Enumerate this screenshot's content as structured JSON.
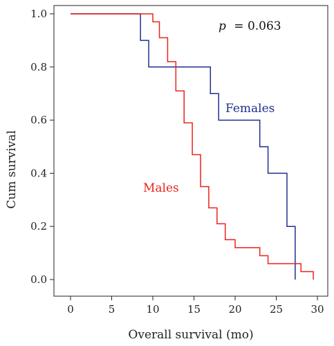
{
  "chart_data": {
    "type": "line",
    "step": true,
    "annotation": {
      "p_label": "p",
      "p_value": "= 0.063"
    },
    "xlabel": "Overall survival (mo)",
    "ylabel": "Cum survival",
    "xlim": [
      0,
      30
    ],
    "ylim": [
      0,
      1
    ],
    "xticks": [
      "0",
      "5",
      "10",
      "15",
      "20",
      "25",
      "30"
    ],
    "yticks": [
      "0.0",
      "0.2",
      "0.4",
      "0.6",
      "0.8",
      "1.0"
    ],
    "grid": false,
    "series": [
      {
        "name": "Females",
        "color": "#1f2f8f",
        "x": [
          0,
          8.5,
          9.5,
          17,
          18,
          23,
          24,
          26.3,
          27.3
        ],
        "y": [
          1.0,
          0.9,
          0.8,
          0.7,
          0.6,
          0.5,
          0.4,
          0.2,
          0.0
        ]
      },
      {
        "name": "Males",
        "color": "#e8231b",
        "x": [
          0,
          10,
          10.8,
          11.8,
          12.8,
          13.8,
          14.8,
          15.8,
          16.8,
          17.8,
          18.8,
          20.0,
          23.0,
          24.0,
          28.0,
          29.0,
          29.5
        ],
        "y": [
          1.0,
          0.97,
          0.91,
          0.82,
          0.71,
          0.59,
          0.47,
          0.35,
          0.27,
          0.21,
          0.15,
          0.12,
          0.09,
          0.06,
          0.03,
          0.03,
          0.0
        ]
      }
    ]
  }
}
